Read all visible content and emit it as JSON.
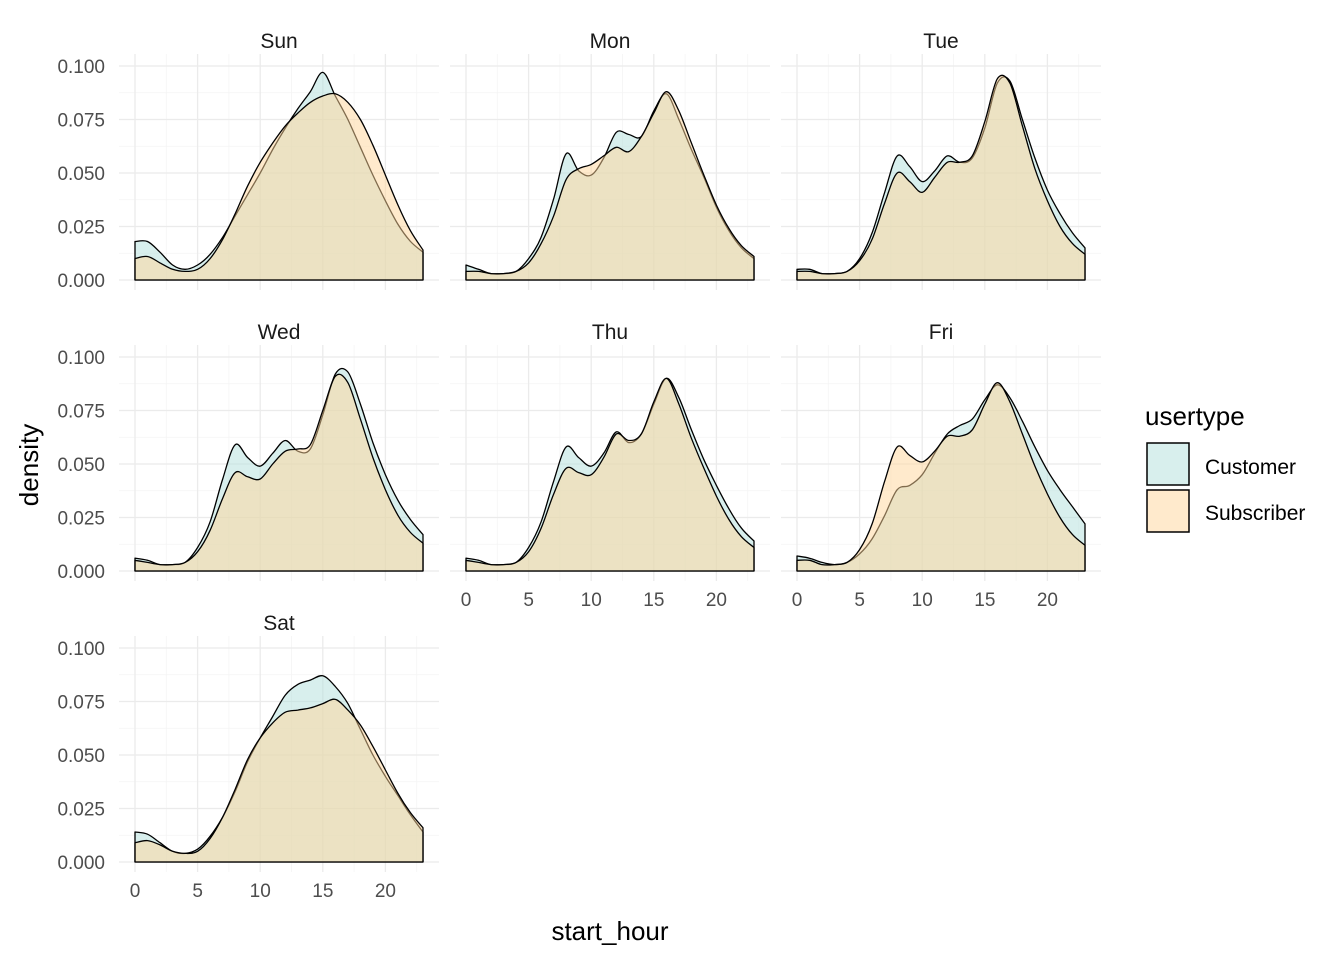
{
  "chart_data": {
    "type": "area",
    "subtype": "faceted density",
    "xlabel": "start_hour",
    "ylabel": "density",
    "xlim": [
      0,
      23
    ],
    "ylim": [
      0,
      0.1
    ],
    "x_ticks": [
      0,
      5,
      10,
      15,
      20
    ],
    "x_tick_labels": [
      "0",
      "5",
      "10",
      "15",
      "20"
    ],
    "y_ticks": [
      0,
      0.025,
      0.05,
      0.075,
      0.1
    ],
    "y_tick_labels": [
      "0.000",
      "0.025",
      "0.050",
      "0.075",
      "0.100"
    ],
    "grid": true,
    "legend": {
      "title": "usertype",
      "position": "right",
      "entries": [
        {
          "name": "Customer",
          "color": "#b2dfdb"
        },
        {
          "name": "Subscriber",
          "color": "#ffd699"
        }
      ]
    },
    "fill_opacity": 0.5,
    "x": [
      0,
      1,
      2,
      3,
      4,
      5,
      6,
      7,
      8,
      9,
      10,
      11,
      12,
      13,
      14,
      15,
      16,
      17,
      18,
      19,
      20,
      21,
      22,
      23
    ],
    "facets": [
      {
        "label": "Sun",
        "series": [
          {
            "name": "Customer",
            "values": [
              0.018,
              0.018,
              0.013,
              0.007,
              0.005,
              0.007,
              0.012,
              0.02,
              0.03,
              0.04,
              0.05,
              0.061,
              0.071,
              0.08,
              0.088,
              0.097,
              0.086,
              0.075,
              0.062,
              0.049,
              0.037,
              0.026,
              0.018,
              0.013
            ]
          },
          {
            "name": "Subscriber",
            "values": [
              0.01,
              0.011,
              0.008,
              0.005,
              0.004,
              0.005,
              0.01,
              0.019,
              0.031,
              0.044,
              0.055,
              0.064,
              0.072,
              0.078,
              0.083,
              0.086,
              0.087,
              0.083,
              0.075,
              0.063,
              0.049,
              0.035,
              0.023,
              0.014
            ]
          }
        ]
      },
      {
        "label": "Mon",
        "series": [
          {
            "name": "Customer",
            "values": [
              0.007,
              0.005,
              0.003,
              0.003,
              0.004,
              0.01,
              0.02,
              0.038,
              0.059,
              0.051,
              0.049,
              0.057,
              0.069,
              0.068,
              0.067,
              0.079,
              0.087,
              0.075,
              0.061,
              0.048,
              0.034,
              0.023,
              0.015,
              0.01
            ]
          },
          {
            "name": "Subscriber",
            "values": [
              0.004,
              0.004,
              0.003,
              0.003,
              0.004,
              0.008,
              0.017,
              0.03,
              0.047,
              0.052,
              0.054,
              0.058,
              0.062,
              0.06,
              0.067,
              0.078,
              0.088,
              0.079,
              0.064,
              0.049,
              0.035,
              0.024,
              0.016,
              0.011
            ]
          }
        ]
      },
      {
        "label": "Tue",
        "series": [
          {
            "name": "Customer",
            "values": [
              0.005,
              0.005,
              0.003,
              0.003,
              0.004,
              0.01,
              0.022,
              0.041,
              0.058,
              0.053,
              0.046,
              0.051,
              0.058,
              0.055,
              0.057,
              0.071,
              0.092,
              0.093,
              0.075,
              0.057,
              0.042,
              0.031,
              0.022,
              0.015
            ]
          },
          {
            "name": "Subscriber",
            "values": [
              0.004,
              0.004,
              0.003,
              0.003,
              0.004,
              0.009,
              0.019,
              0.036,
              0.05,
              0.046,
              0.041,
              0.048,
              0.055,
              0.055,
              0.058,
              0.074,
              0.094,
              0.092,
              0.072,
              0.052,
              0.037,
              0.025,
              0.017,
              0.012
            ]
          }
        ]
      },
      {
        "label": "Wed",
        "series": [
          {
            "name": "Customer",
            "values": [
              0.006,
              0.005,
              0.003,
              0.003,
              0.004,
              0.011,
              0.023,
              0.043,
              0.059,
              0.053,
              0.049,
              0.055,
              0.061,
              0.056,
              0.057,
              0.073,
              0.092,
              0.093,
              0.078,
              0.06,
              0.045,
              0.033,
              0.024,
              0.017
            ]
          },
          {
            "name": "Subscriber",
            "values": [
              0.005,
              0.004,
              0.003,
              0.003,
              0.004,
              0.009,
              0.019,
              0.034,
              0.046,
              0.044,
              0.043,
              0.05,
              0.056,
              0.057,
              0.059,
              0.075,
              0.091,
              0.088,
              0.071,
              0.053,
              0.038,
              0.026,
              0.018,
              0.013
            ]
          }
        ]
      },
      {
        "label": "Thu",
        "series": [
          {
            "name": "Customer",
            "values": [
              0.006,
              0.005,
              0.003,
              0.003,
              0.004,
              0.011,
              0.023,
              0.042,
              0.058,
              0.053,
              0.049,
              0.055,
              0.065,
              0.06,
              0.064,
              0.078,
              0.09,
              0.081,
              0.066,
              0.052,
              0.04,
              0.029,
              0.02,
              0.014
            ]
          },
          {
            "name": "Subscriber",
            "values": [
              0.005,
              0.004,
              0.003,
              0.003,
              0.004,
              0.009,
              0.02,
              0.036,
              0.048,
              0.046,
              0.045,
              0.053,
              0.064,
              0.061,
              0.064,
              0.079,
              0.09,
              0.078,
              0.062,
              0.048,
              0.035,
              0.024,
              0.016,
              0.011
            ]
          }
        ]
      },
      {
        "label": "Fri",
        "series": [
          {
            "name": "Customer",
            "values": [
              0.007,
              0.006,
              0.004,
              0.003,
              0.004,
              0.008,
              0.015,
              0.026,
              0.038,
              0.04,
              0.045,
              0.055,
              0.064,
              0.068,
              0.071,
              0.08,
              0.087,
              0.081,
              0.07,
              0.058,
              0.047,
              0.038,
              0.03,
              0.022
            ]
          },
          {
            "name": "Subscriber",
            "values": [
              0.005,
              0.005,
              0.003,
              0.003,
              0.004,
              0.01,
              0.022,
              0.042,
              0.058,
              0.054,
              0.051,
              0.056,
              0.063,
              0.063,
              0.066,
              0.078,
              0.088,
              0.079,
              0.064,
              0.049,
              0.036,
              0.025,
              0.017,
              0.012
            ]
          }
        ]
      },
      {
        "label": "Sat",
        "series": [
          {
            "name": "Customer",
            "values": [
              0.014,
              0.013,
              0.009,
              0.005,
              0.004,
              0.006,
              0.012,
              0.021,
              0.033,
              0.047,
              0.058,
              0.068,
              0.078,
              0.083,
              0.085,
              0.087,
              0.082,
              0.074,
              0.062,
              0.05,
              0.04,
              0.031,
              0.022,
              0.014
            ]
          },
          {
            "name": "Subscriber",
            "values": [
              0.009,
              0.01,
              0.008,
              0.005,
              0.004,
              0.005,
              0.011,
              0.021,
              0.034,
              0.048,
              0.058,
              0.065,
              0.07,
              0.071,
              0.072,
              0.074,
              0.076,
              0.071,
              0.064,
              0.054,
              0.043,
              0.032,
              0.023,
              0.016
            ]
          }
        ]
      }
    ]
  }
}
